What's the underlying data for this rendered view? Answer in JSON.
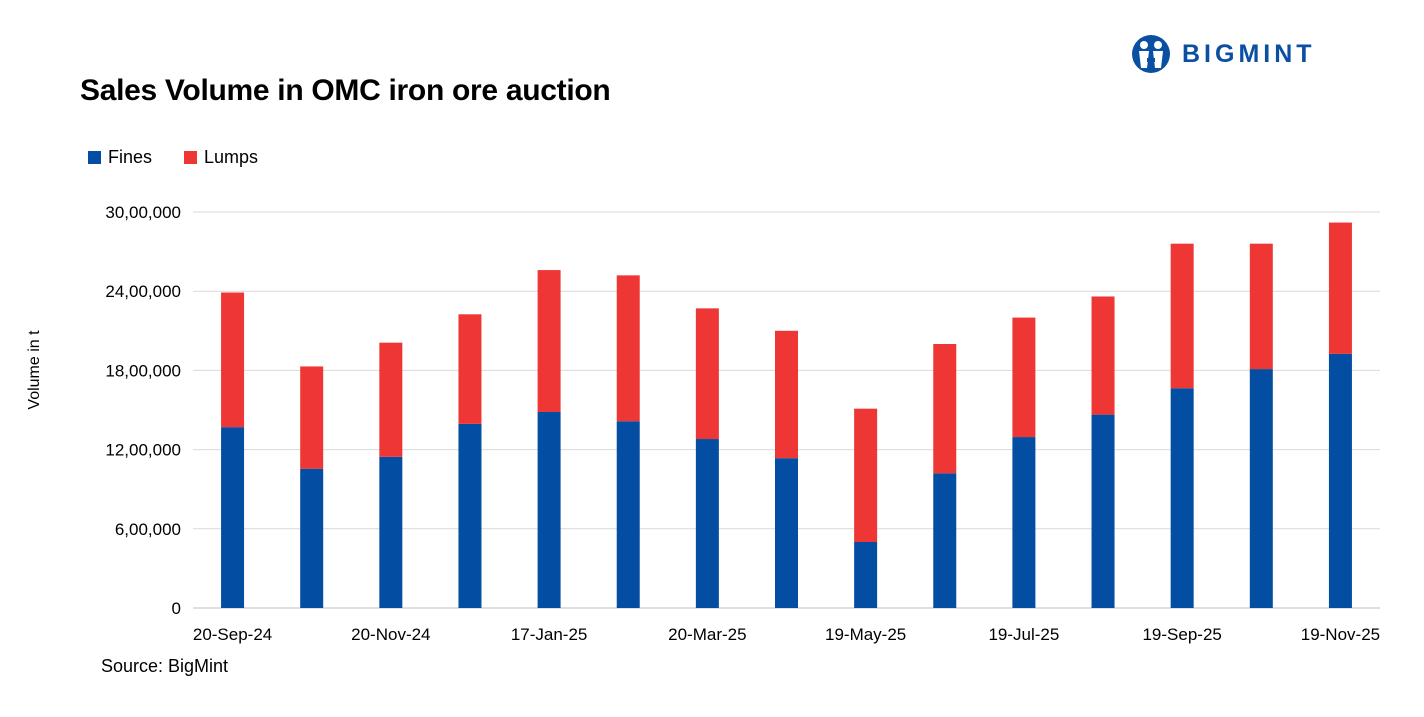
{
  "logo": {
    "text": "BIGMINT",
    "brand_color": "#0b4fa3"
  },
  "source": "Source: BigMint",
  "chart_data": {
    "type": "bar",
    "stacked": true,
    "title": "Sales Volume in OMC iron ore auction",
    "ylabel": "Volume in t",
    "xlabel": "",
    "ylim": [
      0,
      3000000
    ],
    "yticks": [
      0,
      600000,
      1200000,
      1800000,
      2400000,
      3000000
    ],
    "ytick_labels": [
      "0",
      "6,00,000",
      "12,00,000",
      "18,00,000",
      "24,00,000",
      "30,00,000"
    ],
    "grid": true,
    "legend": "top-left",
    "x_tick_labels": [
      "20-Sep-24",
      "20-Nov-24",
      "17-Jan-25",
      "20-Mar-25",
      "19-May-25",
      "19-Jul-25",
      "19-Sep-25",
      "19-Nov-25"
    ],
    "x_tick_label_every": 2,
    "bar_count": 15,
    "series": [
      {
        "name": "Fines",
        "color": "#034ea2",
        "values": [
          1370000,
          1055000,
          1145000,
          1395000,
          1485000,
          1415000,
          1280000,
          1135000,
          500000,
          1020000,
          1295000,
          1465000,
          1665000,
          1810000,
          1925000
        ]
      },
      {
        "name": "Lumps",
        "color": "#ee3734",
        "values": [
          1020000,
          775000,
          865000,
          830000,
          1075000,
          1105000,
          990000,
          965000,
          1010000,
          980000,
          905000,
          895000,
          1095000,
          950000,
          995000
        ]
      }
    ]
  }
}
